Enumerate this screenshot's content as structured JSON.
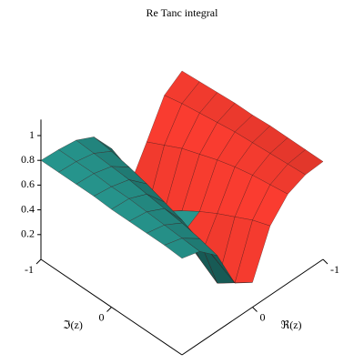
{
  "chart_data": {
    "type": "surface3d",
    "title": "Re Tanc integral",
    "xlabel": "ℜ(z)",
    "ylabel": "ℑ(z)",
    "x": [
      -1,
      -0.75,
      -0.5,
      -0.25,
      0,
      0.25,
      0.5,
      0.75,
      1
    ],
    "y": [
      -1,
      -0.75,
      -0.5,
      -0.25,
      0,
      0.25,
      0.5,
      0.75,
      1
    ],
    "z": [
      [
        0.75,
        0.65,
        0.37,
        0.1,
        0.51,
        0.7,
        0.77,
        0.79,
        0.8
      ],
      [
        0.76,
        0.68,
        0.44,
        0.0,
        0.44,
        0.68,
        0.76,
        0.79,
        0.8
      ],
      [
        0.77,
        0.7,
        0.51,
        0.1,
        0.37,
        0.65,
        0.75,
        0.79,
        0.8
      ],
      [
        0.78,
        0.72,
        0.56,
        0.2,
        0.29,
        0.61,
        0.74,
        0.78,
        0.8
      ],
      [
        0.78,
        0.74,
        0.61,
        0.29,
        0.2,
        0.56,
        0.72,
        0.78,
        0.79
      ],
      [
        0.79,
        0.75,
        0.65,
        0.37,
        0.1,
        0.51,
        0.7,
        0.77,
        0.79
      ],
      [
        0.79,
        0.76,
        0.68,
        0.44,
        0.0,
        0.44,
        0.68,
        0.76,
        0.79
      ],
      [
        0.79,
        0.77,
        0.7,
        0.51,
        0.1,
        0.37,
        0.65,
        0.75,
        0.79
      ],
      [
        0.79,
        0.78,
        0.72,
        0.56,
        0.2,
        0.29,
        0.61,
        0.74,
        0.78
      ]
    ],
    "colors": [
      "#f03a2e",
      "#2aa39a"
    ],
    "xlim": [
      -1,
      1
    ],
    "ylim": [
      -1,
      1
    ],
    "zlim": [
      0,
      1.13
    ],
    "xticks": [
      -1,
      0
    ],
    "yticks": [
      -1,
      0
    ],
    "zticks": [
      0.2,
      0.4,
      0.6,
      0.8,
      1
    ]
  }
}
